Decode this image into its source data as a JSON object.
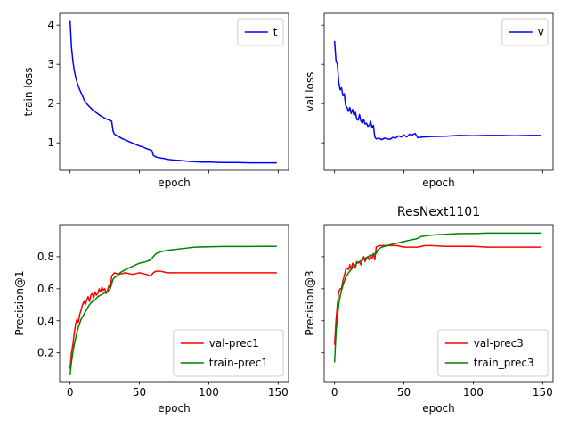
{
  "chart_data": [
    {
      "type": "line",
      "title": "",
      "xlabel": "epoch",
      "ylabel": "train loss",
      "xlim": [
        -7.5,
        157.5
      ],
      "ylim": [
        0.3,
        4.3
      ],
      "yticks": [
        1,
        2,
        3,
        4
      ],
      "xticks": [
        0,
        50,
        100,
        150
      ],
      "show_xtick_labels": false,
      "grid": false,
      "legend": "top-right",
      "series": [
        {
          "name": "t",
          "color": "#0000ff",
          "x": [
            0,
            1,
            2,
            3,
            4,
            5,
            6,
            7,
            8,
            9,
            10,
            12,
            14,
            16,
            18,
            20,
            22,
            24,
            26,
            28,
            30,
            31,
            32,
            34,
            36,
            38,
            40,
            42,
            44,
            46,
            48,
            50,
            52,
            54,
            56,
            58,
            59,
            60,
            62,
            64,
            66,
            68,
            70,
            75,
            80,
            85,
            90,
            95,
            100,
            110,
            120,
            130,
            140,
            149
          ],
          "y": [
            4.13,
            3.45,
            3.1,
            2.85,
            2.68,
            2.55,
            2.44,
            2.35,
            2.27,
            2.2,
            2.1,
            2.0,
            1.92,
            1.85,
            1.79,
            1.74,
            1.69,
            1.65,
            1.61,
            1.58,
            1.55,
            1.3,
            1.22,
            1.18,
            1.14,
            1.1,
            1.07,
            1.04,
            1.01,
            0.98,
            0.95,
            0.92,
            0.9,
            0.87,
            0.84,
            0.82,
            0.8,
            0.68,
            0.64,
            0.62,
            0.61,
            0.6,
            0.58,
            0.56,
            0.55,
            0.53,
            0.52,
            0.51,
            0.51,
            0.5,
            0.5,
            0.49,
            0.49,
            0.49
          ]
        }
      ]
    },
    {
      "type": "line",
      "title": "",
      "xlabel": "epoch",
      "ylabel": "val loss",
      "xlim": [
        -7.5,
        157.5
      ],
      "ylim": [
        0.3,
        4.3
      ],
      "yticks": [
        1,
        2,
        3,
        4
      ],
      "xticks": [
        0,
        50,
        100,
        150
      ],
      "show_tick_labels": false,
      "grid": false,
      "legend": "top-right",
      "series": [
        {
          "name": "v",
          "color": "#0000ff",
          "x": [
            0,
            1,
            2,
            3,
            4,
            5,
            6,
            7,
            8,
            9,
            10,
            11,
            12,
            13,
            14,
            15,
            16,
            17,
            18,
            19,
            20,
            21,
            22,
            23,
            24,
            25,
            26,
            27,
            28,
            29,
            30,
            32,
            34,
            36,
            38,
            40,
            42,
            44,
            46,
            48,
            50,
            52,
            54,
            56,
            58,
            60,
            62,
            64,
            70,
            80,
            90,
            100,
            110,
            120,
            130,
            140,
            149
          ],
          "y": [
            3.6,
            3.1,
            3.0,
            2.55,
            2.35,
            2.4,
            2.2,
            2.25,
            1.95,
            1.9,
            1.8,
            1.9,
            1.75,
            1.85,
            1.7,
            1.78,
            1.6,
            1.58,
            1.72,
            1.55,
            1.5,
            1.6,
            1.48,
            1.5,
            1.42,
            1.45,
            1.55,
            1.38,
            1.45,
            1.15,
            1.1,
            1.12,
            1.08,
            1.12,
            1.1,
            1.09,
            1.14,
            1.12,
            1.18,
            1.15,
            1.2,
            1.15,
            1.22,
            1.2,
            1.24,
            1.13,
            1.14,
            1.15,
            1.16,
            1.17,
            1.19,
            1.18,
            1.19,
            1.19,
            1.18,
            1.19,
            1.19
          ]
        }
      ]
    },
    {
      "type": "line",
      "title": "",
      "xlabel": "epoch",
      "ylabel": "Precision@1",
      "xlim": [
        -7.5,
        157.5
      ],
      "ylim": [
        0.02,
        1.0
      ],
      "yticks": [
        0.2,
        0.4,
        0.6,
        0.8
      ],
      "xticks": [
        0,
        50,
        100,
        150
      ],
      "grid": false,
      "legend": "bottom-right",
      "series": [
        {
          "name": "val-prec1",
          "color": "#ff0000",
          "x": [
            0,
            1,
            2,
            3,
            4,
            5,
            6,
            7,
            8,
            9,
            10,
            11,
            12,
            13,
            14,
            15,
            16,
            17,
            18,
            19,
            20,
            21,
            22,
            23,
            24,
            25,
            26,
            27,
            28,
            29,
            30,
            32,
            35,
            40,
            45,
            50,
            55,
            58,
            60,
            62,
            65,
            70,
            80,
            90,
            100,
            110,
            120,
            130,
            140,
            149
          ],
          "y": [
            0.1,
            0.2,
            0.25,
            0.32,
            0.38,
            0.41,
            0.39,
            0.44,
            0.47,
            0.5,
            0.52,
            0.5,
            0.53,
            0.55,
            0.52,
            0.56,
            0.57,
            0.54,
            0.58,
            0.56,
            0.57,
            0.6,
            0.58,
            0.61,
            0.59,
            0.6,
            0.57,
            0.59,
            0.62,
            0.6,
            0.68,
            0.7,
            0.69,
            0.7,
            0.69,
            0.7,
            0.69,
            0.68,
            0.7,
            0.71,
            0.71,
            0.7,
            0.7,
            0.7,
            0.7,
            0.7,
            0.7,
            0.7,
            0.7,
            0.7
          ]
        },
        {
          "name": "train-prec1",
          "color": "#008000",
          "x": [
            0,
            1,
            2,
            3,
            4,
            5,
            6,
            8,
            10,
            12,
            14,
            16,
            18,
            20,
            22,
            24,
            26,
            28,
            29,
            30,
            31,
            32,
            34,
            36,
            38,
            40,
            45,
            50,
            55,
            58,
            59,
            60,
            61,
            62,
            65,
            70,
            75,
            80,
            90,
            100,
            110,
            120,
            130,
            140,
            149
          ],
          "y": [
            0.06,
            0.14,
            0.2,
            0.25,
            0.29,
            0.33,
            0.36,
            0.41,
            0.44,
            0.47,
            0.5,
            0.52,
            0.53,
            0.55,
            0.56,
            0.57,
            0.58,
            0.59,
            0.6,
            0.63,
            0.66,
            0.67,
            0.68,
            0.7,
            0.71,
            0.72,
            0.74,
            0.76,
            0.77,
            0.78,
            0.79,
            0.8,
            0.81,
            0.82,
            0.83,
            0.84,
            0.845,
            0.85,
            0.86,
            0.862,
            0.864,
            0.864,
            0.864,
            0.865,
            0.865
          ]
        }
      ]
    },
    {
      "type": "line",
      "title": "ResNext1101",
      "xlabel": "epoch",
      "ylabel": "Precision@3",
      "xlim": [
        -7.5,
        157.5
      ],
      "ylim": [
        0.02,
        1.0
      ],
      "yticks": [
        0.2,
        0.4,
        0.6,
        0.8
      ],
      "xticks": [
        0,
        50,
        100,
        150
      ],
      "show_ytick_labels": false,
      "grid": false,
      "legend": "bottom-right",
      "series": [
        {
          "name": "val-prec3",
          "color": "#ff0000",
          "x": [
            0,
            1,
            2,
            3,
            4,
            5,
            6,
            7,
            8,
            9,
            10,
            11,
            12,
            13,
            14,
            15,
            16,
            17,
            18,
            19,
            20,
            21,
            22,
            23,
            24,
            25,
            26,
            27,
            28,
            29,
            30,
            32,
            35,
            40,
            45,
            50,
            55,
            60,
            65,
            70,
            80,
            90,
            100,
            110,
            120,
            130,
            140,
            149
          ],
          "y": [
            0.25,
            0.4,
            0.5,
            0.58,
            0.6,
            0.6,
            0.65,
            0.68,
            0.72,
            0.73,
            0.72,
            0.75,
            0.72,
            0.76,
            0.74,
            0.73,
            0.77,
            0.76,
            0.77,
            0.75,
            0.78,
            0.8,
            0.77,
            0.79,
            0.8,
            0.78,
            0.8,
            0.79,
            0.82,
            0.78,
            0.86,
            0.87,
            0.87,
            0.87,
            0.87,
            0.86,
            0.86,
            0.86,
            0.87,
            0.87,
            0.865,
            0.865,
            0.865,
            0.86,
            0.86,
            0.86,
            0.86,
            0.86
          ]
        },
        {
          "name": "train_prec3",
          "color": "#008000",
          "x": [
            0,
            1,
            2,
            3,
            4,
            5,
            6,
            8,
            10,
            12,
            14,
            16,
            18,
            20,
            22,
            24,
            26,
            28,
            29,
            30,
            31,
            32,
            34,
            36,
            38,
            40,
            45,
            50,
            55,
            58,
            60,
            62,
            65,
            70,
            80,
            90,
            100,
            110,
            120,
            130,
            140,
            149
          ],
          "y": [
            0.14,
            0.32,
            0.42,
            0.5,
            0.55,
            0.59,
            0.62,
            0.67,
            0.7,
            0.72,
            0.74,
            0.76,
            0.77,
            0.78,
            0.79,
            0.8,
            0.81,
            0.81,
            0.82,
            0.82,
            0.84,
            0.85,
            0.86,
            0.865,
            0.87,
            0.875,
            0.885,
            0.895,
            0.905,
            0.91,
            0.915,
            0.925,
            0.93,
            0.935,
            0.94,
            0.945,
            0.945,
            0.948,
            0.948,
            0.948,
            0.948,
            0.948
          ]
        }
      ]
    }
  ]
}
